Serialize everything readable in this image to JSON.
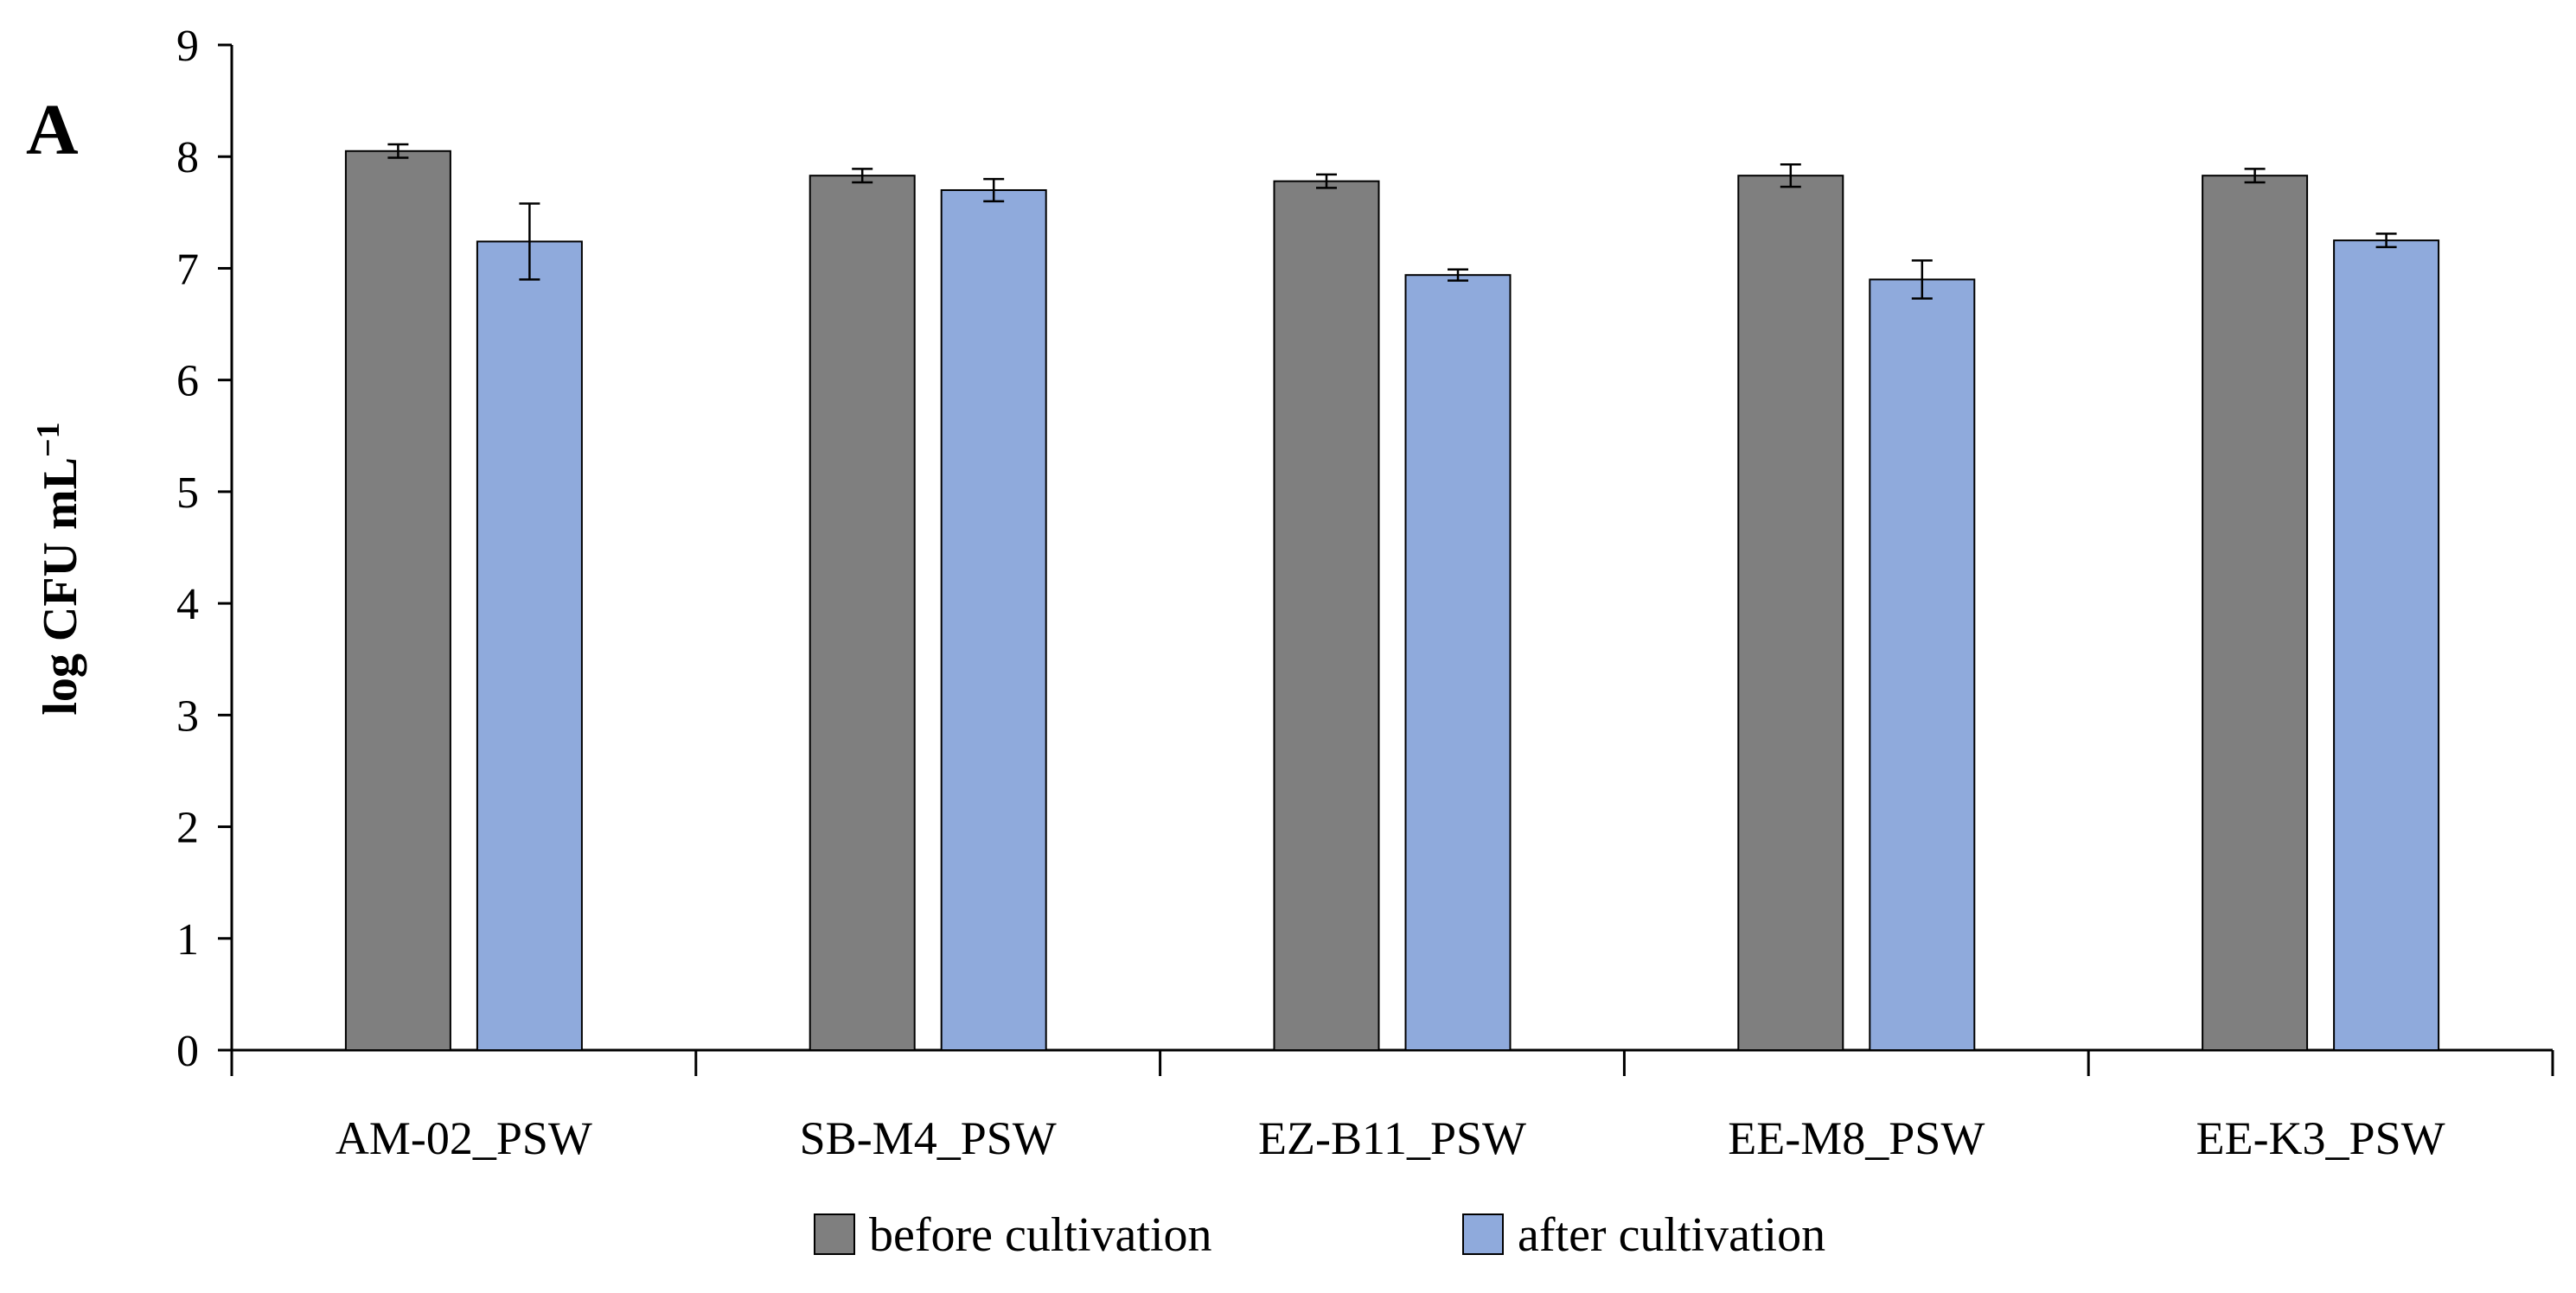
{
  "panel_label": "A",
  "chart_data": {
    "type": "bar",
    "title": "",
    "xlabel": "",
    "ylabel": "log CFU mL",
    "ylabel_superscript": "−1",
    "ylim": [
      0,
      9
    ],
    "yticks": [
      "0",
      "1",
      "2",
      "3",
      "4",
      "5",
      "6",
      "7",
      "8",
      "9"
    ],
    "grid": false,
    "legend_position": "bottom",
    "categories": [
      "AM-02_PSW",
      "SB-M4_PSW",
      "EZ-B11_PSW",
      "EE-M8_PSW",
      "EE-K3_PSW"
    ],
    "series": [
      {
        "name": "before cultivation",
        "color": "#7f7f7f",
        "values": [
          8.05,
          7.83,
          7.78,
          7.83,
          7.83
        ],
        "errors": [
          0.06,
          0.06,
          0.06,
          0.1,
          0.06
        ]
      },
      {
        "name": "after cultivation",
        "color": "#8faadc",
        "values": [
          7.24,
          7.7,
          6.94,
          6.9,
          7.25
        ],
        "errors": [
          0.34,
          0.1,
          0.05,
          0.17,
          0.06
        ]
      }
    ]
  }
}
